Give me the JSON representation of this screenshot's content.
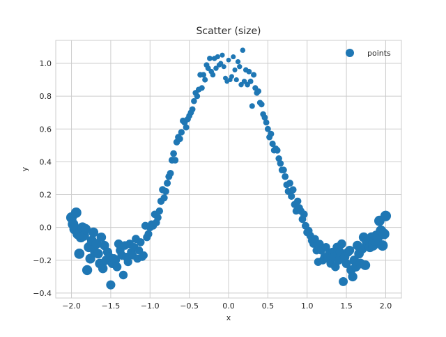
{
  "chart_data": {
    "type": "scatter",
    "title": "Scatter (size)",
    "xlabel": "x",
    "ylabel": "y",
    "xlim": [
      -2.2,
      2.2
    ],
    "ylim": [
      -0.43,
      1.14
    ],
    "xticks": [
      -2.0,
      -1.5,
      -1.0,
      -0.5,
      0.0,
      0.5,
      1.0,
      1.5,
      2.0
    ],
    "xtick_labels": [
      "−2.0",
      "−1.5",
      "−1.0",
      "−0.5",
      "0.0",
      "0.5",
      "1.0",
      "1.5",
      "2.0"
    ],
    "yticks": [
      -0.4,
      -0.2,
      0.0,
      0.2,
      0.4,
      0.6,
      0.8,
      1.0
    ],
    "ytick_labels": [
      "−0.4",
      "−0.2",
      "0.0",
      "0.2",
      "0.4",
      "0.6",
      "0.8",
      "1.0"
    ],
    "grid": true,
    "legend_position": "top-right",
    "color": "#1f77b4",
    "series": [
      {
        "name": "points",
        "encoding": "marker size grows with |x|",
        "points": [
          [
            -2.0,
            0.06
          ],
          [
            -1.98,
            0.02
          ],
          [
            -1.96,
            -0.01
          ],
          [
            -1.94,
            0.09
          ],
          [
            -1.92,
            -0.04
          ],
          [
            -1.9,
            -0.16
          ],
          [
            -1.88,
            -0.06
          ],
          [
            -1.86,
            0.0
          ],
          [
            -1.84,
            -0.05
          ],
          [
            -1.82,
            -0.01
          ],
          [
            -1.8,
            -0.26
          ],
          [
            -1.78,
            -0.12
          ],
          [
            -1.76,
            -0.19
          ],
          [
            -1.74,
            -0.08
          ],
          [
            -1.72,
            -0.03
          ],
          [
            -1.7,
            -0.15
          ],
          [
            -1.68,
            -0.1
          ],
          [
            -1.66,
            -0.16
          ],
          [
            -1.64,
            -0.22
          ],
          [
            -1.62,
            -0.06
          ],
          [
            -1.6,
            -0.25
          ],
          [
            -1.58,
            -0.11
          ],
          [
            -1.56,
            -0.2
          ],
          [
            -1.54,
            -0.15
          ],
          [
            -1.52,
            -0.18
          ],
          [
            -1.5,
            -0.35
          ],
          [
            -1.48,
            -0.22
          ],
          [
            -1.46,
            -0.19
          ],
          [
            -1.44,
            -0.2
          ],
          [
            -1.42,
            -0.24
          ],
          [
            -1.4,
            -0.1
          ],
          [
            -1.38,
            -0.14
          ],
          [
            -1.36,
            -0.17
          ],
          [
            -1.34,
            -0.29
          ],
          [
            -1.32,
            -0.11
          ],
          [
            -1.3,
            -0.18
          ],
          [
            -1.28,
            -0.21
          ],
          [
            -1.26,
            -0.1
          ],
          [
            -1.24,
            -0.15
          ],
          [
            -1.22,
            -0.17
          ],
          [
            -1.2,
            -0.12
          ],
          [
            -1.18,
            -0.07
          ],
          [
            -1.16,
            -0.19
          ],
          [
            -1.14,
            -0.14
          ],
          [
            -1.12,
            -0.09
          ],
          [
            -1.1,
            -0.18
          ],
          [
            -1.08,
            -0.17
          ],
          [
            -1.06,
            0.01
          ],
          [
            -1.04,
            -0.06
          ],
          [
            -1.02,
            -0.04
          ],
          [
            -1.0,
            0.0
          ],
          [
            -0.98,
            0.02
          ],
          [
            -0.96,
            0.01
          ],
          [
            -0.94,
            0.08
          ],
          [
            -0.92,
            0.03
          ],
          [
            -0.9,
            0.06
          ],
          [
            -0.88,
            0.1
          ],
          [
            -0.86,
            0.16
          ],
          [
            -0.84,
            0.23
          ],
          [
            -0.82,
            0.18
          ],
          [
            -0.8,
            0.22
          ],
          [
            -0.78,
            0.27
          ],
          [
            -0.76,
            0.31
          ],
          [
            -0.74,
            0.33
          ],
          [
            -0.72,
            0.41
          ],
          [
            -0.7,
            0.45
          ],
          [
            -0.68,
            0.41
          ],
          [
            -0.66,
            0.52
          ],
          [
            -0.64,
            0.55
          ],
          [
            -0.62,
            0.54
          ],
          [
            -0.6,
            0.58
          ],
          [
            -0.58,
            0.65
          ],
          [
            -0.56,
            0.64
          ],
          [
            -0.54,
            0.61
          ],
          [
            -0.52,
            0.66
          ],
          [
            -0.5,
            0.68
          ],
          [
            -0.48,
            0.7
          ],
          [
            -0.46,
            0.72
          ],
          [
            -0.44,
            0.77
          ],
          [
            -0.42,
            0.82
          ],
          [
            -0.4,
            0.8
          ],
          [
            -0.38,
            0.84
          ],
          [
            -0.36,
            0.93
          ],
          [
            -0.34,
            0.85
          ],
          [
            -0.32,
            0.93
          ],
          [
            -0.3,
            0.9
          ],
          [
            -0.28,
            0.99
          ],
          [
            -0.26,
            0.97
          ],
          [
            -0.24,
            1.03
          ],
          [
            -0.22,
            0.95
          ],
          [
            -0.2,
            0.93
          ],
          [
            -0.18,
            1.03
          ],
          [
            -0.16,
            0.97
          ],
          [
            -0.14,
            1.04
          ],
          [
            -0.12,
            0.99
          ],
          [
            -0.1,
            1.0
          ],
          [
            -0.08,
            1.05
          ],
          [
            -0.06,
            0.98
          ],
          [
            -0.04,
            0.91
          ],
          [
            -0.02,
            0.89
          ],
          [
            0.0,
            1.02
          ],
          [
            0.02,
            0.9
          ],
          [
            0.04,
            0.92
          ],
          [
            0.06,
            1.04
          ],
          [
            0.08,
            0.96
          ],
          [
            0.1,
            0.9
          ],
          [
            0.12,
            1.01
          ],
          [
            0.14,
            0.98
          ],
          [
            0.16,
            0.87
          ],
          [
            0.18,
            1.08
          ],
          [
            0.2,
            0.89
          ],
          [
            0.22,
            0.96
          ],
          [
            0.24,
            0.87
          ],
          [
            0.26,
            0.95
          ],
          [
            0.28,
            0.89
          ],
          [
            0.3,
            0.74
          ],
          [
            0.32,
            0.93
          ],
          [
            0.34,
            0.85
          ],
          [
            0.36,
            0.82
          ],
          [
            0.38,
            0.83
          ],
          [
            0.4,
            0.76
          ],
          [
            0.42,
            0.75
          ],
          [
            0.44,
            0.69
          ],
          [
            0.46,
            0.67
          ],
          [
            0.48,
            0.64
          ],
          [
            0.5,
            0.6
          ],
          [
            0.52,
            0.55
          ],
          [
            0.54,
            0.57
          ],
          [
            0.56,
            0.51
          ],
          [
            0.58,
            0.47
          ],
          [
            0.6,
            0.48
          ],
          [
            0.62,
            0.47
          ],
          [
            0.64,
            0.42
          ],
          [
            0.66,
            0.39
          ],
          [
            0.68,
            0.35
          ],
          [
            0.7,
            0.35
          ],
          [
            0.72,
            0.31
          ],
          [
            0.74,
            0.26
          ],
          [
            0.76,
            0.22
          ],
          [
            0.78,
            0.27
          ],
          [
            0.8,
            0.19
          ],
          [
            0.82,
            0.23
          ],
          [
            0.84,
            0.14
          ],
          [
            0.86,
            0.1
          ],
          [
            0.88,
            0.16
          ],
          [
            0.9,
            0.12
          ],
          [
            0.92,
            0.1
          ],
          [
            0.94,
            0.05
          ],
          [
            0.96,
            0.08
          ],
          [
            0.98,
            0.01
          ],
          [
            1.0,
            -0.03
          ],
          [
            1.02,
            -0.02
          ],
          [
            1.04,
            -0.05
          ],
          [
            1.06,
            -0.08
          ],
          [
            1.08,
            -0.1
          ],
          [
            1.1,
            -0.07
          ],
          [
            1.12,
            -0.14
          ],
          [
            1.14,
            -0.21
          ],
          [
            1.16,
            -0.1
          ],
          [
            1.18,
            -0.14
          ],
          [
            1.2,
            -0.2
          ],
          [
            1.22,
            -0.18
          ],
          [
            1.24,
            -0.12
          ],
          [
            1.26,
            -0.19
          ],
          [
            1.28,
            -0.16
          ],
          [
            1.3,
            -0.22
          ],
          [
            1.32,
            -0.15
          ],
          [
            1.34,
            -0.18
          ],
          [
            1.36,
            -0.24
          ],
          [
            1.38,
            -0.12
          ],
          [
            1.4,
            -0.2
          ],
          [
            1.42,
            -0.15
          ],
          [
            1.44,
            -0.1
          ],
          [
            1.46,
            -0.33
          ],
          [
            1.48,
            -0.18
          ],
          [
            1.5,
            -0.22
          ],
          [
            1.52,
            -0.15
          ],
          [
            1.54,
            -0.14
          ],
          [
            1.56,
            -0.26
          ],
          [
            1.58,
            -0.3
          ],
          [
            1.6,
            -0.2
          ],
          [
            1.62,
            -0.24
          ],
          [
            1.64,
            -0.11
          ],
          [
            1.66,
            -0.16
          ],
          [
            1.68,
            -0.22
          ],
          [
            1.7,
            -0.13
          ],
          [
            1.72,
            -0.06
          ],
          [
            1.74,
            -0.23
          ],
          [
            1.76,
            -0.09
          ],
          [
            1.78,
            -0.1
          ],
          [
            1.8,
            -0.12
          ],
          [
            1.82,
            -0.06
          ],
          [
            1.84,
            -0.11
          ],
          [
            1.86,
            -0.08
          ],
          [
            1.88,
            -0.05
          ],
          [
            1.9,
            -0.06
          ],
          [
            1.92,
            0.04
          ],
          [
            1.94,
            -0.02
          ],
          [
            1.96,
            -0.11
          ],
          [
            1.98,
            -0.04
          ],
          [
            2.0,
            0.07
          ]
        ]
      }
    ]
  }
}
